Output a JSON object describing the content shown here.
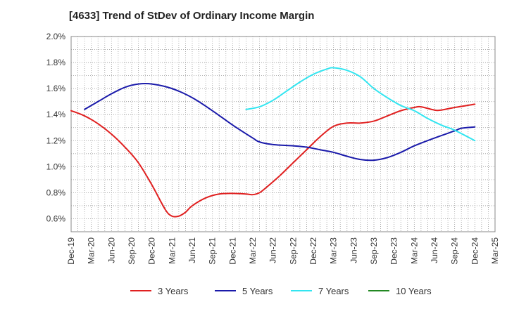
{
  "chart_data": {
    "type": "line",
    "title": "[4633]  Trend of StDev of Ordinary Income Margin",
    "xlabel": "",
    "ylabel": "",
    "ylim": [
      0.5,
      2.0
    ],
    "y_ticks": [
      "2.0%",
      "1.8%",
      "1.6%",
      "1.4%",
      "1.2%",
      "1.0%",
      "0.8%",
      "0.6%"
    ],
    "y_tick_values": [
      2.0,
      1.8,
      1.6,
      1.4,
      1.2,
      1.0,
      0.8,
      0.6
    ],
    "x_ticks": [
      "Dec-19",
      "Mar-20",
      "Jun-20",
      "Sep-20",
      "Dec-20",
      "Mar-21",
      "Jun-21",
      "Sep-21",
      "Dec-21",
      "Mar-22",
      "Jun-22",
      "Sep-22",
      "Dec-22",
      "Mar-23",
      "Jun-23",
      "Sep-23",
      "Dec-23",
      "Mar-24",
      "Jun-24",
      "Sep-24",
      "Dec-24",
      "Mar-25"
    ],
    "grid": true,
    "legend_position": "bottom",
    "series": [
      {
        "name": "3 Years",
        "color": "#e02020",
        "points": [
          [
            "Dec-19",
            1.43
          ],
          [
            "Feb-20",
            1.39
          ],
          [
            "Apr-20",
            1.33
          ],
          [
            "Jun-20",
            1.25
          ],
          [
            "Aug-20",
            1.15
          ],
          [
            "Oct-20",
            1.03
          ],
          [
            "Dec-20",
            0.86
          ],
          [
            "Feb-21",
            0.67
          ],
          [
            "Mar-21",
            0.62
          ],
          [
            "Apr-21",
            0.62
          ],
          [
            "May-21",
            0.65
          ],
          [
            "Jun-21",
            0.7
          ],
          [
            "Aug-21",
            0.76
          ],
          [
            "Oct-21",
            0.79
          ],
          [
            "Dec-21",
            0.795
          ],
          [
            "Feb-22",
            0.79
          ],
          [
            "Mar-22",
            0.785
          ],
          [
            "Apr-22",
            0.8
          ],
          [
            "May-22",
            0.84
          ],
          [
            "Jul-22",
            0.93
          ],
          [
            "Sep-22",
            1.03
          ],
          [
            "Nov-22",
            1.13
          ],
          [
            "Jan-23",
            1.23
          ],
          [
            "Mar-23",
            1.31
          ],
          [
            "May-23",
            1.335
          ],
          [
            "Jul-23",
            1.335
          ],
          [
            "Sep-23",
            1.35
          ],
          [
            "Nov-23",
            1.39
          ],
          [
            "Jan-24",
            1.43
          ],
          [
            "Mar-24",
            1.455
          ],
          [
            "Apr-24",
            1.46
          ],
          [
            "Jun-24",
            1.435
          ],
          [
            "Jul-24",
            1.435
          ],
          [
            "Sep-24",
            1.455
          ],
          [
            "Dec-24",
            1.48
          ]
        ]
      },
      {
        "name": "5 Years",
        "color": "#1a1aaa",
        "points": [
          [
            "Feb-20",
            1.44
          ],
          [
            "Apr-20",
            1.5
          ],
          [
            "Jun-20",
            1.56
          ],
          [
            "Aug-20",
            1.61
          ],
          [
            "Oct-20",
            1.635
          ],
          [
            "Dec-20",
            1.635
          ],
          [
            "Mar-21",
            1.6
          ],
          [
            "Jun-21",
            1.53
          ],
          [
            "Sep-21",
            1.43
          ],
          [
            "Dec-21",
            1.32
          ],
          [
            "Mar-22",
            1.22
          ],
          [
            "Apr-22",
            1.19
          ],
          [
            "Jun-22",
            1.17
          ],
          [
            "Sep-22",
            1.16
          ],
          [
            "Nov-22",
            1.15
          ],
          [
            "Jan-23",
            1.13
          ],
          [
            "Mar-23",
            1.11
          ],
          [
            "May-23",
            1.08
          ],
          [
            "Jul-23",
            1.055
          ],
          [
            "Sep-23",
            1.05
          ],
          [
            "Nov-23",
            1.07
          ],
          [
            "Jan-24",
            1.11
          ],
          [
            "Mar-24",
            1.16
          ],
          [
            "Jun-24",
            1.22
          ],
          [
            "Sep-24",
            1.275
          ],
          [
            "Oct-24",
            1.295
          ],
          [
            "Dec-24",
            1.305
          ]
        ]
      },
      {
        "name": "7 Years",
        "color": "#33e5f0",
        "points": [
          [
            "Feb-22",
            1.44
          ],
          [
            "Apr-22",
            1.46
          ],
          [
            "Jun-22",
            1.51
          ],
          [
            "Aug-22",
            1.58
          ],
          [
            "Oct-22",
            1.65
          ],
          [
            "Dec-22",
            1.71
          ],
          [
            "Feb-23",
            1.75
          ],
          [
            "Mar-23",
            1.76
          ],
          [
            "May-23",
            1.74
          ],
          [
            "Jul-23",
            1.69
          ],
          [
            "Sep-23",
            1.6
          ],
          [
            "Nov-23",
            1.53
          ],
          [
            "Jan-24",
            1.47
          ],
          [
            "Mar-24",
            1.43
          ],
          [
            "May-24",
            1.37
          ],
          [
            "Jul-24",
            1.32
          ],
          [
            "Sep-24",
            1.28
          ],
          [
            "Dec-24",
            1.2
          ]
        ]
      },
      {
        "name": "10 Years",
        "color": "#228822",
        "points": []
      }
    ]
  }
}
